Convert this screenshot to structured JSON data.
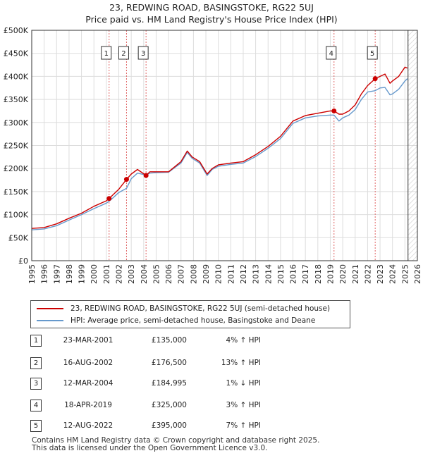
{
  "title_line1": "23, REDWING ROAD, BASINGSTOKE, RG22 5UJ",
  "title_line2": "Price paid vs. HM Land Registry's House Price Index (HPI)",
  "chart_data": {
    "type": "line",
    "title": "23, REDWING ROAD, BASINGSTOKE, RG22 5UJ — Price paid vs. HM Land Registry's House Price Index (HPI)",
    "xlim": [
      1995,
      2026
    ],
    "ylim": [
      0,
      500000
    ],
    "y_ticks": [
      0,
      50000,
      100000,
      150000,
      200000,
      250000,
      300000,
      350000,
      400000,
      450000,
      500000
    ],
    "y_tick_labels": [
      "£0",
      "£50K",
      "£100K",
      "£150K",
      "£200K",
      "£250K",
      "£300K",
      "£350K",
      "£400K",
      "£450K",
      "£500K"
    ],
    "x_ticks": [
      1995,
      1996,
      1997,
      1998,
      1999,
      2000,
      2001,
      2002,
      2003,
      2004,
      2005,
      2006,
      2007,
      2008,
      2009,
      2010,
      2011,
      2012,
      2013,
      2014,
      2015,
      2016,
      2017,
      2018,
      2019,
      2020,
      2021,
      2022,
      2023,
      2024,
      2025,
      2026
    ],
    "x_tick_labels": [
      "1995",
      "1996",
      "1997",
      "1998",
      "1999",
      "2000",
      "2001",
      "2002",
      "2003",
      "2004",
      "2005",
      "2006",
      "2007",
      "2008",
      "2009",
      "2010",
      "2011",
      "2012",
      "2013",
      "2014",
      "2015",
      "2016",
      "2017",
      "2018",
      "2019",
      "2020",
      "2021",
      "2022",
      "2023",
      "2024",
      "2025",
      "2026"
    ],
    "data_end_year": 2025.25,
    "series": [
      {
        "name": "23, REDWING ROAD, BASINGSTOKE, RG22 5UJ (semi-detached house)",
        "color": "#cc0000",
        "x": [
          1995,
          1996,
          1997,
          1998,
          1999,
          2000,
          2001,
          2001.22,
          2001.6,
          2002,
          2002.62,
          2003,
          2003.5,
          2004.19,
          2004.5,
          2005,
          2006,
          2007,
          2007.5,
          2007.9,
          2008.5,
          2009.1,
          2009.5,
          2010,
          2011,
          2012,
          2013,
          2014,
          2015,
          2016,
          2017,
          2018,
          2019,
          2019.3,
          2019.7,
          2020,
          2020.5,
          2021,
          2021.5,
          2022,
          2022.61,
          2023,
          2023.4,
          2023.8,
          2024,
          2024.5,
          2025,
          2025.2
        ],
        "y": [
          70000,
          72000,
          80000,
          92000,
          103000,
          118000,
          130000,
          135000,
          145000,
          155000,
          176500,
          188000,
          198000,
          184995,
          193000,
          193000,
          193000,
          215000,
          238000,
          225000,
          215000,
          188000,
          200000,
          208000,
          212000,
          215000,
          230000,
          248000,
          270000,
          303000,
          315000,
          320000,
          325000,
          325000,
          318000,
          318000,
          325000,
          338000,
          362000,
          380000,
          395000,
          400000,
          405000,
          385000,
          390000,
          400000,
          420000,
          418000
        ]
      },
      {
        "name": "HPI: Average price, semi-detached house, Basingstoke and Deane",
        "color": "#6699cc",
        "x": [
          1995,
          1996,
          1997,
          1998,
          1999,
          2000,
          2001,
          2001.22,
          2001.6,
          2002,
          2002.62,
          2003,
          2003.5,
          2004.19,
          2004.5,
          2005,
          2006,
          2007,
          2007.5,
          2007.9,
          2008.5,
          2009.1,
          2009.5,
          2010,
          2011,
          2012,
          2013,
          2014,
          2015,
          2016,
          2017,
          2018,
          2019,
          2019.3,
          2019.7,
          2020,
          2020.5,
          2021,
          2021.5,
          2022,
          2022.61,
          2023,
          2023.4,
          2023.8,
          2024,
          2024.5,
          2025,
          2025.2
        ],
        "y": [
          67000,
          69000,
          76000,
          88000,
          100000,
          113000,
          125000,
          129000,
          138000,
          148000,
          157000,
          178000,
          190000,
          186000,
          190000,
          191000,
          192000,
          212000,
          235000,
          222000,
          212000,
          185000,
          198000,
          205000,
          209000,
          212000,
          226000,
          244000,
          265000,
          298000,
          310000,
          314000,
          316000,
          316000,
          303000,
          310000,
          316000,
          328000,
          350000,
          366000,
          369000,
          375000,
          376000,
          360000,
          362000,
          372000,
          390000,
          395000
        ]
      }
    ],
    "sales": [
      {
        "label": "1",
        "x": 2001.22,
        "y": 135000
      },
      {
        "label": "2",
        "x": 2002.62,
        "y": 176500
      },
      {
        "label": "3",
        "x": 2004.19,
        "y": 184995
      },
      {
        "label": "4",
        "x": 2019.3,
        "y": 325000
      },
      {
        "label": "5",
        "x": 2022.61,
        "y": 395000
      }
    ]
  },
  "legend": {
    "property": "23, REDWING ROAD, BASINGSTOKE, RG22 5UJ (semi-detached house)",
    "hpi": "HPI: Average price, semi-detached house, Basingstoke and Deane"
  },
  "transactions": [
    {
      "num": "1",
      "date": "23-MAR-2001",
      "price": "£135,000",
      "hpi": "4% ↑ HPI"
    },
    {
      "num": "2",
      "date": "16-AUG-2002",
      "price": "£176,500",
      "hpi": "13% ↑ HPI"
    },
    {
      "num": "3",
      "date": "12-MAR-2004",
      "price": "£184,995",
      "hpi": "1% ↓ HPI"
    },
    {
      "num": "4",
      "date": "18-APR-2019",
      "price": "£325,000",
      "hpi": "3% ↑ HPI"
    },
    {
      "num": "5",
      "date": "12-AUG-2022",
      "price": "£395,000",
      "hpi": "7% ↑ HPI"
    }
  ],
  "footer_line1": "Contains HM Land Registry data © Crown copyright and database right 2025.",
  "footer_line2": "This data is licensed under the Open Government Licence v3.0."
}
